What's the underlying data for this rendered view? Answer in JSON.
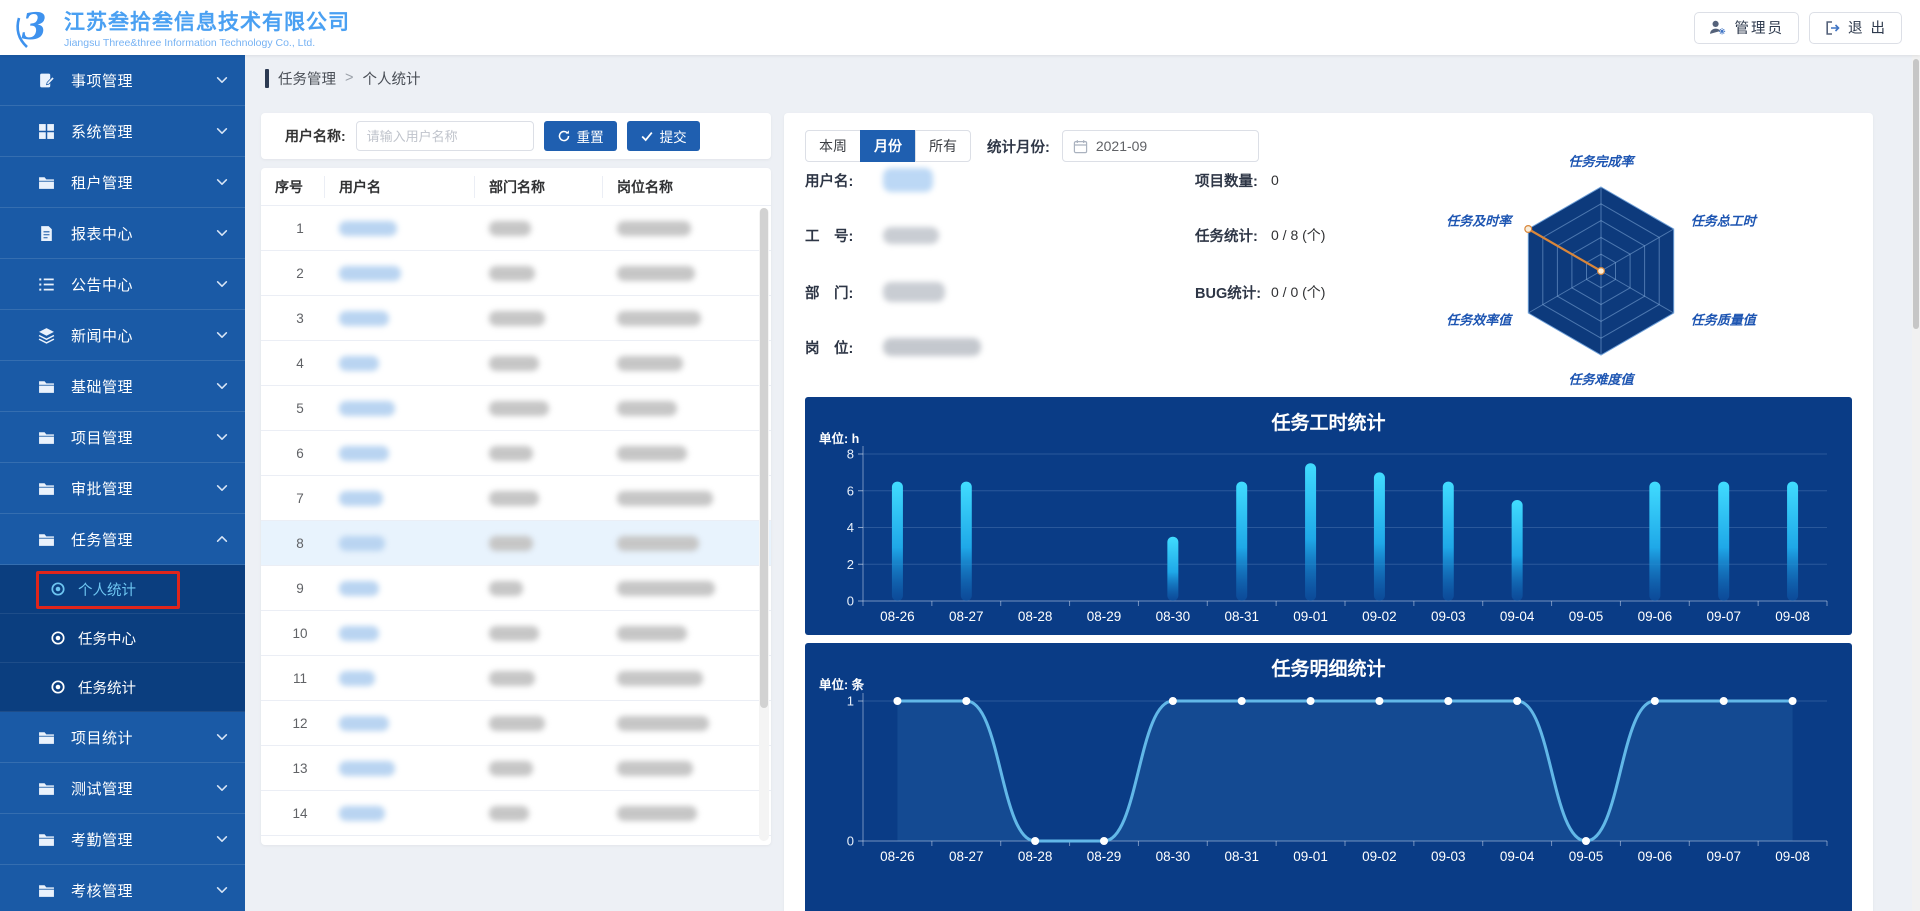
{
  "header": {
    "logo_glyph": "3",
    "company_cn": "江苏叁拾叁信息技术有限公司",
    "company_en": "Jiangsu Three&three Information Technology Co., Ltd.",
    "admin_label": "管理员",
    "logout_label": "退 出"
  },
  "sidebar": {
    "items": [
      {
        "key": "matter-management",
        "label": "事项管理",
        "icon": "document-icon"
      },
      {
        "key": "system-management",
        "label": "系统管理",
        "icon": "grid-icon"
      },
      {
        "key": "tenant-management",
        "label": "租户管理",
        "icon": "folder-icon"
      },
      {
        "key": "report-center",
        "label": "报表中心",
        "icon": "file-icon"
      },
      {
        "key": "notice-center",
        "label": "公告中心",
        "icon": "list-icon"
      },
      {
        "key": "news-center",
        "label": "新闻中心",
        "icon": "layers-icon"
      },
      {
        "key": "basic-management",
        "label": "基础管理",
        "icon": "folder-icon"
      },
      {
        "key": "project-management",
        "label": "项目管理",
        "icon": "folder-icon"
      },
      {
        "key": "approval-management",
        "label": "审批管理",
        "icon": "folder-icon"
      },
      {
        "key": "task-management",
        "label": "任务管理",
        "icon": "folder-icon",
        "expanded": true,
        "children": [
          {
            "key": "personal-stats",
            "label": "个人统计",
            "selected": true,
            "highlighted": true
          },
          {
            "key": "task-center",
            "label": "任务中心"
          },
          {
            "key": "task-stats",
            "label": "任务统计"
          }
        ]
      },
      {
        "key": "project-stats",
        "label": "项目统计",
        "icon": "folder-icon"
      },
      {
        "key": "test-management",
        "label": "测试管理",
        "icon": "folder-icon"
      },
      {
        "key": "attendance-management",
        "label": "考勤管理",
        "icon": "folder-icon"
      },
      {
        "key": "assessment-management",
        "label": "考核管理",
        "icon": "folder-icon"
      }
    ]
  },
  "breadcrumb": {
    "parent": "任务管理",
    "separator": ">",
    "current": "个人统计"
  },
  "search": {
    "label": "用户名称:",
    "placeholder": "请输入用户名称",
    "value": "",
    "reset_label": "重置",
    "submit_label": "提交"
  },
  "table": {
    "columns": [
      "序号",
      "用户名",
      "部门名称",
      "岗位名称"
    ],
    "rows": [
      {
        "no": "1",
        "name_w": 58,
        "dept_w": 42,
        "post_w": 74
      },
      {
        "no": "2",
        "name_w": 62,
        "dept_w": 46,
        "post_w": 78
      },
      {
        "no": "3",
        "name_w": 50,
        "dept_w": 56,
        "post_w": 84
      },
      {
        "no": "4",
        "name_w": 40,
        "dept_w": 50,
        "post_w": 66
      },
      {
        "no": "5",
        "name_w": 56,
        "dept_w": 60,
        "post_w": 60
      },
      {
        "no": "6",
        "name_w": 50,
        "dept_w": 44,
        "post_w": 70
      },
      {
        "no": "7",
        "name_w": 44,
        "dept_w": 50,
        "post_w": 96
      },
      {
        "no": "8",
        "name_w": 46,
        "dept_w": 44,
        "post_w": 82,
        "selected": true
      },
      {
        "no": "9",
        "name_w": 40,
        "dept_w": 34,
        "post_w": 98
      },
      {
        "no": "10",
        "name_w": 40,
        "dept_w": 50,
        "post_w": 70
      },
      {
        "no": "11",
        "name_w": 36,
        "dept_w": 46,
        "post_w": 86
      },
      {
        "no": "12",
        "name_w": 50,
        "dept_w": 56,
        "post_w": 92
      },
      {
        "no": "13",
        "name_w": 56,
        "dept_w": 44,
        "post_w": 76
      },
      {
        "no": "14",
        "name_w": 46,
        "dept_w": 40,
        "post_w": 80
      }
    ]
  },
  "stats_panel": {
    "tabs": [
      {
        "key": "week",
        "label": "本周"
      },
      {
        "key": "month",
        "label": "月份",
        "active": true
      },
      {
        "key": "all",
        "label": "所有"
      }
    ],
    "month_label": "统计月份:",
    "month_value": "2021-09",
    "info": {
      "username_label": "用户名:",
      "workno_label": "工　号:",
      "dept_label": "部　门:",
      "post_label": "岗　位:",
      "project_count_label": "项目数量:",
      "project_count_value": "0",
      "task_stat_label": "任务统计:",
      "task_stat_value": "0 / 8 (个)",
      "bug_stat_label": "BUG统计:",
      "bug_stat_value": "0 / 0 (个)"
    }
  },
  "radar": {
    "labels": [
      "任务完成率",
      "任务总工时",
      "任务质量值",
      "任务难度值",
      "任务效率值",
      "任务及时率"
    ],
    "values": [
      0,
      0,
      0,
      0,
      0,
      1
    ],
    "levels": 5
  },
  "chart_data": [
    {
      "type": "bar",
      "title": "任务工时统计",
      "unit_label": "单位: h",
      "categories": [
        "08-26",
        "08-27",
        "08-28",
        "08-29",
        "08-30",
        "08-31",
        "09-01",
        "09-02",
        "09-03",
        "09-04",
        "09-05",
        "09-06",
        "09-07",
        "09-08"
      ],
      "values": [
        6.5,
        6.5,
        0,
        0,
        3.5,
        6.5,
        7.5,
        7,
        6.5,
        5.5,
        0,
        6.5,
        6.5,
        6.5
      ],
      "xlabel": "",
      "ylabel": "h",
      "ylim": [
        0,
        8
      ],
      "yticks": [
        0,
        2,
        4,
        6,
        8
      ],
      "grid": true,
      "legend": "none"
    },
    {
      "type": "line",
      "title": "任务明细统计",
      "unit_label": "单位: 条",
      "categories": [
        "08-26",
        "08-27",
        "08-28",
        "08-29",
        "08-30",
        "08-31",
        "09-01",
        "09-02",
        "09-03",
        "09-04",
        "09-05",
        "09-06",
        "09-07",
        "09-08"
      ],
      "values": [
        1,
        1,
        0,
        0,
        1,
        1,
        1,
        1,
        1,
        1,
        0,
        1,
        1,
        1
      ],
      "xlabel": "",
      "ylabel": "条",
      "ylim": [
        0,
        1
      ],
      "yticks": [
        0,
        1
      ],
      "grid": true,
      "legend": "none"
    }
  ],
  "colors": {
    "accent": "#1f5fb0",
    "sidebar": "#1a5aa6",
    "submenu": "#0b3e7f",
    "subactive": "#6ec6f2",
    "chartbg": "#0a3c86",
    "bar_top": "#41dcff",
    "bar_mid": "#1fa8e8",
    "linecolor": "#62b8e8",
    "radarlabel": "#1d55b2",
    "radar_line": "#d9863a",
    "red": "#e0251b",
    "rowsel": "#e8f3fd",
    "logoblue": "#4aa0f2"
  }
}
